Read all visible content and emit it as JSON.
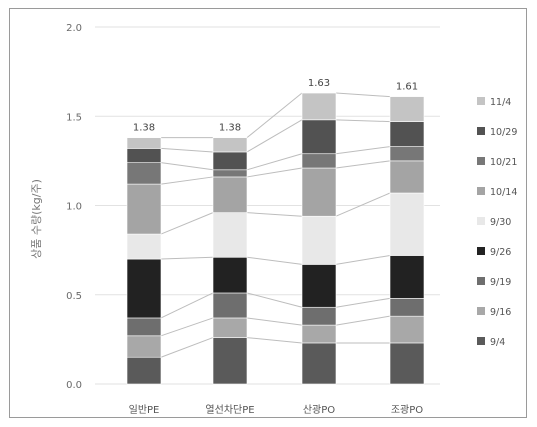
{
  "chart_data": {
    "type": "bar",
    "stacked": true,
    "title": "",
    "ylabel": "상품 수량(kg/주)",
    "ylim": [
      0,
      2.0
    ],
    "yticks": [
      "0.0",
      "0.5",
      "1.0",
      "1.5",
      "2.0"
    ],
    "categories": [
      "일반PE",
      "열선차단PE",
      "산광PO",
      "조광PO"
    ],
    "totals": [
      "1.38",
      "1.38",
      "1.63",
      "1.61"
    ],
    "grid": true,
    "legend_position": "right",
    "connecting_lines": true,
    "series": [
      {
        "name": "9/4",
        "color": "#5a5a5a",
        "values": [
          0.15,
          0.26,
          0.23,
          0.23
        ]
      },
      {
        "name": "9/16",
        "color": "#a8a8a8",
        "values": [
          0.12,
          0.11,
          0.1,
          0.15
        ]
      },
      {
        "name": "9/19",
        "color": "#6e6e6e",
        "values": [
          0.1,
          0.14,
          0.1,
          0.1
        ]
      },
      {
        "name": "9/26",
        "color": "#222222",
        "values": [
          0.33,
          0.2,
          0.24,
          0.24
        ]
      },
      {
        "name": "9/30",
        "color": "#e8e8e8",
        "values": [
          0.14,
          0.25,
          0.27,
          0.35
        ]
      },
      {
        "name": "10/14",
        "color": "#a4a4a4",
        "values": [
          0.28,
          0.2,
          0.27,
          0.18
        ]
      },
      {
        "name": "10/21",
        "color": "#777777",
        "values": [
          0.12,
          0.04,
          0.08,
          0.08
        ]
      },
      {
        "name": "10/29",
        "color": "#525252",
        "values": [
          0.08,
          0.1,
          0.19,
          0.14
        ]
      },
      {
        "name": "11/4",
        "color": "#c4c4c4",
        "values": [
          0.06,
          0.08,
          0.15,
          0.14
        ]
      }
    ]
  }
}
